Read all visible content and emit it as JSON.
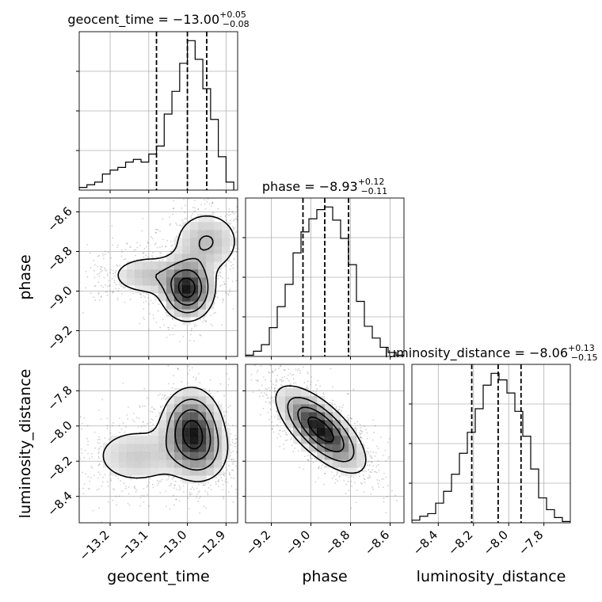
{
  "chart_data": {
    "type": "corner",
    "parameters": [
      "geocent_time",
      "phase",
      "luminosity_distance"
    ],
    "titles": [
      {
        "param": "geocent_time",
        "prefix": "geocent_time = ",
        "value": "−13.00",
        "plus": "+0.05",
        "minus": "−0.08"
      },
      {
        "param": "phase",
        "prefix": "phase = ",
        "value": "−8.93",
        "plus": "+0.12",
        "minus": "−0.11"
      },
      {
        "param": "luminosity_distance",
        "prefix": "luminosity_distance = ",
        "value": "−8.06",
        "plus": "+0.13",
        "minus": "−0.15"
      }
    ],
    "axes": {
      "geocent_time": {
        "range": [
          -13.28,
          -12.87
        ],
        "ticks": [
          -13.2,
          -13.1,
          -13.0,
          -12.9
        ],
        "tick_labels": [
          "−13.2",
          "−13.1",
          "−13.0",
          "−12.9"
        ]
      },
      "phase": {
        "range": [
          -9.33,
          -8.53
        ],
        "ticks": [
          -9.2,
          -9.0,
          -8.8,
          -8.6
        ],
        "tick_labels": [
          "−9.2",
          "−9.0",
          "−8.8",
          "−8.6"
        ]
      },
      "luminosity_distance": {
        "range": [
          -8.55,
          -7.65
        ],
        "ticks": [
          -8.4,
          -8.2,
          -8.0,
          -7.8
        ],
        "tick_labels": [
          "−8.4",
          "−8.2",
          "−8.0",
          "−7.8"
        ]
      }
    },
    "quantiles": {
      "geocent_time": [
        -13.08,
        -13.0,
        -12.95
      ],
      "phase": [
        -9.04,
        -8.93,
        -8.81
      ],
      "luminosity_distance": [
        -8.21,
        -8.06,
        -7.93
      ]
    },
    "histograms": {
      "geocent_time": {
        "edges": [
          -13.28,
          -13.26,
          -13.24,
          -13.22,
          -13.2,
          -13.18,
          -13.16,
          -13.14,
          -13.12,
          -13.1,
          -13.08,
          -13.06,
          -13.04,
          -13.02,
          -13.0,
          -12.98,
          -12.96,
          -12.94,
          -12.92,
          -12.9,
          -12.88
        ],
        "counts": [
          2,
          4,
          6,
          12,
          15,
          17,
          21,
          23,
          21,
          27,
          33,
          57,
          74,
          95,
          112,
          98,
          76,
          53,
          25,
          6
        ]
      },
      "phase": {
        "edges": [
          -9.33,
          -9.29,
          -9.25,
          -9.21,
          -9.17,
          -9.13,
          -9.09,
          -9.05,
          -9.01,
          -8.97,
          -8.93,
          -8.89,
          -8.85,
          -8.81,
          -8.77,
          -8.73,
          -8.69,
          -8.65,
          -8.61,
          -8.57,
          -8.53
        ],
        "counts": [
          1,
          4,
          9,
          22,
          38,
          55,
          79,
          95,
          105,
          112,
          114,
          104,
          90,
          70,
          42,
          23,
          14,
          7,
          3,
          1
        ]
      },
      "luminosity_distance": {
        "edges": [
          -8.55,
          -8.505,
          -8.46,
          -8.415,
          -8.37,
          -8.325,
          -8.28,
          -8.235,
          -8.19,
          -8.145,
          -8.1,
          -8.055,
          -8.01,
          -7.965,
          -7.92,
          -7.875,
          -7.83,
          -7.785,
          -7.74,
          -7.695,
          -7.65
        ],
        "counts": [
          2,
          5,
          7,
          15,
          24,
          37,
          53,
          69,
          87,
          105,
          114,
          109,
          99,
          85,
          66,
          41,
          19,
          10,
          4,
          1
        ]
      }
    },
    "density_2d": {
      "phase_vs_geocent_time": {
        "x": "geocent_time",
        "y": "phase",
        "modes": [
          {
            "x": -13.0,
            "y": -8.99,
            "sx": 0.035,
            "sy": 0.08,
            "w": 1.0
          },
          {
            "x": -13.1,
            "y": -8.92,
            "sx": 0.06,
            "sy": 0.06,
            "w": 0.3
          },
          {
            "x": -12.95,
            "y": -8.75,
            "sx": 0.05,
            "sy": 0.09,
            "w": 0.35
          }
        ]
      },
      "luminosity_distance_vs_geocent_time": {
        "x": "geocent_time",
        "y": "luminosity_distance",
        "modes": [
          {
            "x": -12.99,
            "y": -8.02,
            "sx": 0.04,
            "sy": 0.12,
            "w": 1.0
          },
          {
            "x": -13.13,
            "y": -8.17,
            "sx": 0.07,
            "sy": 0.1,
            "w": 0.3
          },
          {
            "x": -12.96,
            "y": -8.15,
            "sx": 0.04,
            "sy": 0.1,
            "w": 0.35
          }
        ]
      },
      "luminosity_distance_vs_phase": {
        "x": "phase",
        "y": "luminosity_distance",
        "modes": [
          {
            "x": -8.95,
            "y": -8.02,
            "sx": 0.11,
            "sy": 0.12,
            "w": 1.0,
            "rho": -0.7
          }
        ]
      }
    },
    "grid": true
  }
}
